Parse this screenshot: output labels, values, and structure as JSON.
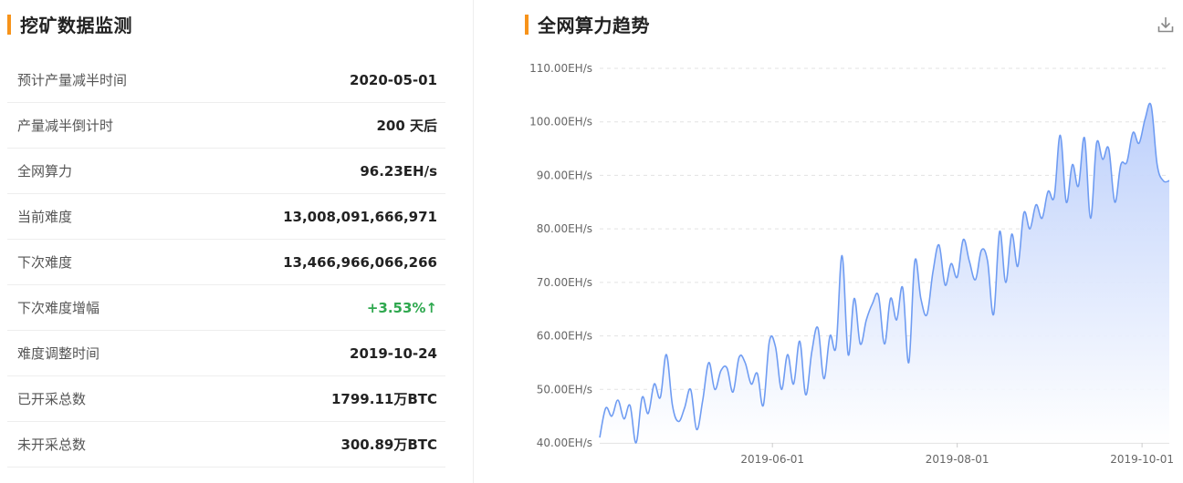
{
  "left": {
    "title": "挖矿数据监测",
    "stats": [
      {
        "label": "预计产量减半时间",
        "value": "2020-05-01"
      },
      {
        "label": "产量减半倒计时",
        "value": "200 天后"
      },
      {
        "label": "全网算力",
        "value": "96.23EH/s"
      },
      {
        "label": "当前难度",
        "value": "13,008,091,666,971"
      },
      {
        "label": "下次难度",
        "value": "13,466,966,066,266"
      },
      {
        "label": "下次难度增幅",
        "value": "+3.53%↑"
      },
      {
        "label": "难度调整时间",
        "value": "2019-10-24"
      },
      {
        "label": "已开采总数",
        "value": "1799.11万BTC"
      },
      {
        "label": "未开采总数",
        "value": "300.89万BTC"
      }
    ]
  },
  "right": {
    "title": "全网算力趋势"
  },
  "colors": {
    "accent": "#f7931a",
    "line": "#6f9cf2",
    "area_top": "#b9cdfb",
    "area_bottom": "#ffffff",
    "positive": "#2fa84f"
  },
  "icons": {
    "download": "download-icon"
  },
  "chart_data": {
    "type": "area",
    "title": "全网算力趋势",
    "ylim": [
      40,
      110
    ],
    "yticks": [
      "40.00EH/s",
      "50.00EH/s",
      "60.00EH/s",
      "70.00EH/s",
      "80.00EH/s",
      "90.00EH/s",
      "100.00EH/s",
      "110.00EH/s"
    ],
    "ytick_values": [
      40,
      50,
      60,
      70,
      80,
      90,
      100,
      110
    ],
    "xlim": [
      "2019-04-05",
      "2019-10-10"
    ],
    "xticks": [
      "2019-06-01",
      "2019-08-01",
      "2019-10-01"
    ],
    "grid": "horizontal-dashed",
    "series": [
      {
        "x": [
          "2019-04-05",
          "2019-04-07",
          "2019-04-09",
          "2019-04-11",
          "2019-04-13",
          "2019-04-15",
          "2019-04-17",
          "2019-04-19",
          "2019-04-21",
          "2019-04-23",
          "2019-04-25",
          "2019-04-27",
          "2019-04-29",
          "2019-05-01",
          "2019-05-03",
          "2019-05-05",
          "2019-05-07",
          "2019-05-09",
          "2019-05-11",
          "2019-05-13",
          "2019-05-15",
          "2019-05-17",
          "2019-05-19",
          "2019-05-21",
          "2019-05-23",
          "2019-05-25",
          "2019-05-27",
          "2019-05-29",
          "2019-05-31",
          "2019-06-02",
          "2019-06-04",
          "2019-06-06",
          "2019-06-08",
          "2019-06-10",
          "2019-06-12",
          "2019-06-14",
          "2019-06-16",
          "2019-06-18",
          "2019-06-20",
          "2019-06-22",
          "2019-06-24",
          "2019-06-26",
          "2019-06-28",
          "2019-06-30",
          "2019-07-02",
          "2019-07-04",
          "2019-07-06",
          "2019-07-08",
          "2019-07-10",
          "2019-07-12",
          "2019-07-14",
          "2019-07-16",
          "2019-07-18",
          "2019-07-20",
          "2019-07-22",
          "2019-07-24",
          "2019-07-26",
          "2019-07-28",
          "2019-07-30",
          "2019-08-01",
          "2019-08-03",
          "2019-08-05",
          "2019-08-07",
          "2019-08-09",
          "2019-08-11",
          "2019-08-13",
          "2019-08-15",
          "2019-08-17",
          "2019-08-19",
          "2019-08-21",
          "2019-08-23",
          "2019-08-25",
          "2019-08-27",
          "2019-08-29",
          "2019-08-31",
          "2019-09-02",
          "2019-09-04",
          "2019-09-06",
          "2019-09-08",
          "2019-09-10",
          "2019-09-12",
          "2019-09-14",
          "2019-09-16",
          "2019-09-18",
          "2019-09-20",
          "2019-09-22",
          "2019-09-24",
          "2019-09-26",
          "2019-09-28",
          "2019-09-30",
          "2019-10-02",
          "2019-10-04",
          "2019-10-06",
          "2019-10-08",
          "2019-10-10"
        ],
        "values": [
          41.0,
          46.5,
          45.0,
          48.0,
          44.5,
          47.0,
          40.0,
          48.5,
          45.5,
          51.0,
          48.5,
          56.5,
          47.0,
          44.0,
          46.5,
          50.0,
          42.5,
          48.0,
          55.0,
          50.0,
          53.5,
          54.0,
          49.5,
          56.0,
          55.0,
          51.0,
          53.0,
          47.0,
          59.0,
          58.0,
          50.0,
          56.5,
          51.0,
          59.0,
          49.0,
          57.0,
          61.5,
          52.0,
          60.0,
          58.0,
          75.0,
          56.5,
          67.0,
          58.5,
          63.0,
          66.0,
          67.5,
          58.5,
          67.0,
          63.0,
          69.0,
          55.0,
          74.0,
          67.0,
          64.0,
          72.0,
          77.0,
          69.5,
          73.5,
          71.0,
          78.0,
          74.0,
          70.5,
          76.0,
          74.0,
          64.0,
          79.5,
          70.0,
          79.0,
          73.0,
          83.0,
          80.0,
          84.5,
          82.0,
          87.0,
          86.0,
          97.5,
          85.0,
          92.0,
          88.0,
          97.0,
          82.0,
          96.0,
          93.0,
          95.0,
          85.0,
          92.0,
          92.5,
          98.0,
          96.0,
          100.5,
          103.0,
          92.0,
          89.0,
          89.0
        ]
      }
    ]
  }
}
